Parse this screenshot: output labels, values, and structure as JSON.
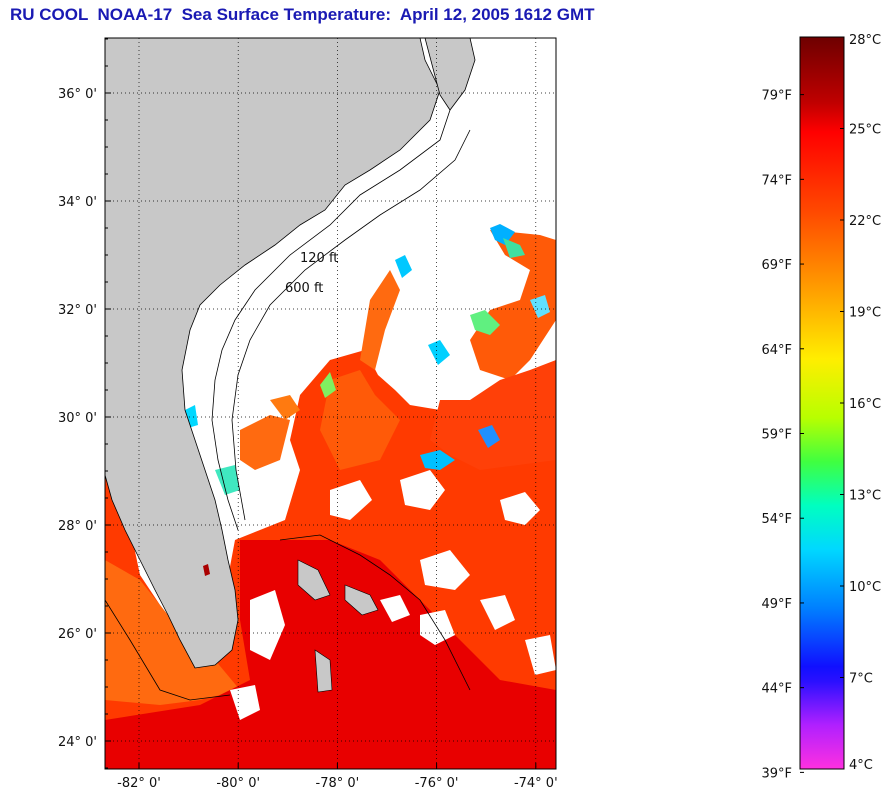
{
  "title": "RU COOL  NOAA-17  Sea Surface Temperature:  April 12, 2005 1612 GMT",
  "map": {
    "lat_labels": [
      {
        "lat": 36,
        "text": "36° 0'"
      },
      {
        "lat": 34,
        "text": "34° 0'"
      },
      {
        "lat": 32,
        "text": "32° 0'"
      },
      {
        "lat": 30,
        "text": "30° 0'"
      },
      {
        "lat": 28,
        "text": "28° 0'"
      },
      {
        "lat": 26,
        "text": "26° 0'"
      },
      {
        "lat": 24,
        "text": "24° 0'"
      }
    ],
    "lon_labels": [
      {
        "lon": -82,
        "text": "-82° 0'"
      },
      {
        "lon": -80,
        "text": "-80° 0'"
      },
      {
        "lon": -78,
        "text": "-78° 0'"
      },
      {
        "lon": -76,
        "text": "-76° 0'"
      },
      {
        "lon": -74,
        "text": "-74° 0'"
      }
    ],
    "isobath_labels": [
      "120 ft",
      "600 ft"
    ],
    "colors": {
      "land": "#c8c8c8",
      "cloud": "#ffffff",
      "warm_sst": "#ff3300",
      "cool_sst": "#00c8ff"
    }
  },
  "colorbar": {
    "celsius": [
      {
        "value": 28,
        "text": "28°C"
      },
      {
        "value": 25,
        "text": "25°C"
      },
      {
        "value": 22,
        "text": "22°C"
      },
      {
        "value": 19,
        "text": "19°C"
      },
      {
        "value": 16,
        "text": "16°C"
      },
      {
        "value": 13,
        "text": "13°C"
      },
      {
        "value": 10,
        "text": "10°C"
      },
      {
        "value": 7,
        "text": "7°C"
      },
      {
        "value": 4,
        "text": "4°C"
      }
    ],
    "fahrenheit": [
      {
        "value": 79,
        "text": "79°F"
      },
      {
        "value": 74,
        "text": "74°F"
      },
      {
        "value": 69,
        "text": "69°F"
      },
      {
        "value": 64,
        "text": "64°F"
      },
      {
        "value": 59,
        "text": "59°F"
      },
      {
        "value": 54,
        "text": "54°F"
      },
      {
        "value": 49,
        "text": "49°F"
      },
      {
        "value": 44,
        "text": "44°F"
      },
      {
        "value": 39,
        "text": "39°F"
      }
    ],
    "range_c": [
      4,
      28
    ]
  }
}
